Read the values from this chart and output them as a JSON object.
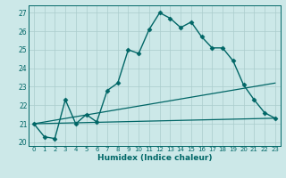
{
  "xlabel": "Humidex (Indice chaleur)",
  "ylabel": "",
  "background_color": "#cce8e8",
  "grid_color": "#aacccc",
  "line_color": "#006666",
  "xlim": [
    -0.5,
    23.5
  ],
  "ylim": [
    19.8,
    27.4
  ],
  "yticks": [
    20,
    21,
    22,
    23,
    24,
    25,
    26,
    27
  ],
  "xticks": [
    0,
    1,
    2,
    3,
    4,
    5,
    6,
    7,
    8,
    9,
    10,
    11,
    12,
    13,
    14,
    15,
    16,
    17,
    18,
    19,
    20,
    21,
    22,
    23
  ],
  "series": [
    {
      "x": [
        0,
        1,
        2,
        3,
        4,
        5,
        6,
        7,
        8,
        9,
        10,
        11,
        12,
        13,
        14,
        15,
        16,
        17,
        18,
        19,
        20,
        21,
        22,
        23
      ],
      "y": [
        21.0,
        20.3,
        20.2,
        22.3,
        21.0,
        21.5,
        21.1,
        22.8,
        23.2,
        25.0,
        24.8,
        26.1,
        27.0,
        26.7,
        26.2,
        26.5,
        25.7,
        25.1,
        25.1,
        24.4,
        23.1,
        22.3,
        21.6,
        21.3
      ],
      "marker": "D",
      "markersize": 2.5,
      "linewidth": 1.0
    },
    {
      "x": [
        0,
        23
      ],
      "y": [
        21.0,
        21.3
      ],
      "marker": null,
      "markersize": 0,
      "linewidth": 0.9
    },
    {
      "x": [
        0,
        23
      ],
      "y": [
        21.0,
        23.2
      ],
      "marker": null,
      "markersize": 0,
      "linewidth": 0.9
    }
  ]
}
